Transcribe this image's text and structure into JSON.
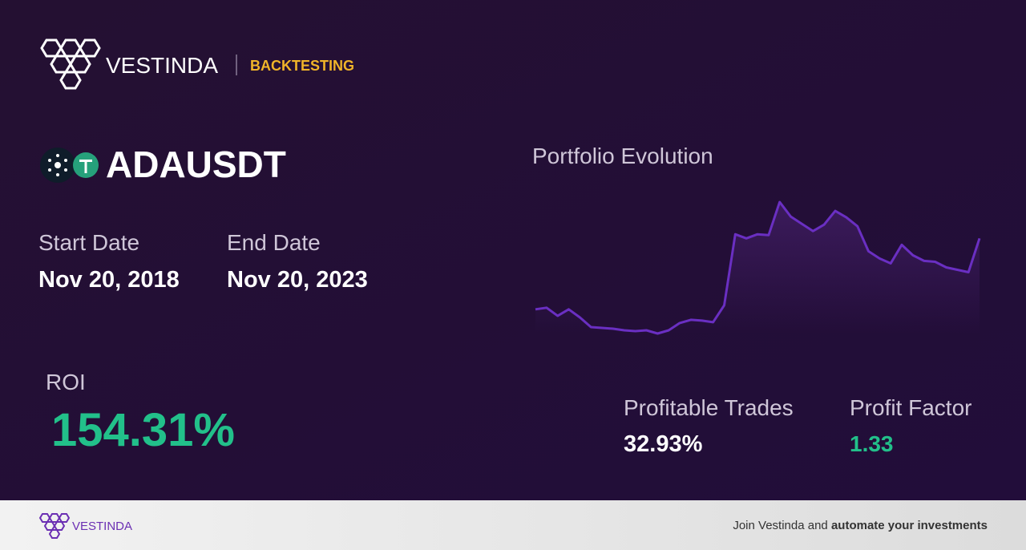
{
  "header": {
    "brand": "VESTINDA",
    "section": "BACKTESTING"
  },
  "pair": "ADAUSDT",
  "start_date": {
    "label": "Start Date",
    "value": "Nov 20, 2018"
  },
  "end_date": {
    "label": "End Date",
    "value": "Nov 20, 2023"
  },
  "roi": {
    "label": "ROI",
    "value": "154.31%"
  },
  "profitable_trades": {
    "label": "Profitable Trades",
    "value": "32.93%"
  },
  "profit_factor": {
    "label": "Profit Factor",
    "value": "1.33"
  },
  "chart_data": {
    "type": "line",
    "title": "Portfolio Evolution",
    "color": "#6a2fc2",
    "values": [
      35,
      37,
      27,
      35,
      25,
      13,
      12,
      11,
      9,
      8,
      9,
      5,
      9,
      18,
      22,
      21,
      19,
      40,
      128,
      123,
      128,
      127,
      168,
      150,
      141,
      132,
      140,
      157,
      149,
      138,
      107,
      98,
      92,
      115,
      102,
      95,
      94,
      87,
      84,
      81,
      123
    ]
  },
  "footer": {
    "brand": "VESTINDA",
    "text": "Join Vestinda and ",
    "text_bold": "automate your investments"
  }
}
